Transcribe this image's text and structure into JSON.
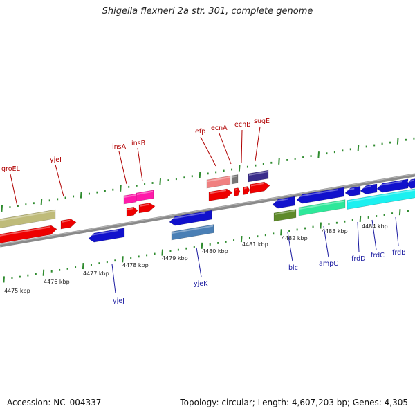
{
  "title": "Shigella flexneri 2a str. 301, complete genome",
  "footer": {
    "accession": "Accession: NC_004337",
    "summary": "Topology: circular; Length: 4,607,203 bp; Genes: 4,305"
  },
  "colors": {
    "backbone": "#8c8c8c",
    "tick": "#2e8b2e",
    "label_forward": "#b00000",
    "label_reverse": "#1a1aa0"
  },
  "kbp_labels": [
    "4475 kbp",
    "4476 kbp",
    "4477 kbp",
    "4478 kbp",
    "4479 kbp",
    "4480 kbp",
    "4481 kbp",
    "4482 kbp",
    "4483 kbp",
    "4484 kbp"
  ],
  "gene_labels": {
    "forward": [
      "groEL",
      "yjeI",
      "insA",
      "insB",
      "efp",
      "ecnA",
      "ecnB",
      "sugE"
    ],
    "reverse": [
      "yjeJ",
      "yjeK",
      "blc",
      "ampC",
      "frdD",
      "frdC",
      "frdB"
    ]
  }
}
